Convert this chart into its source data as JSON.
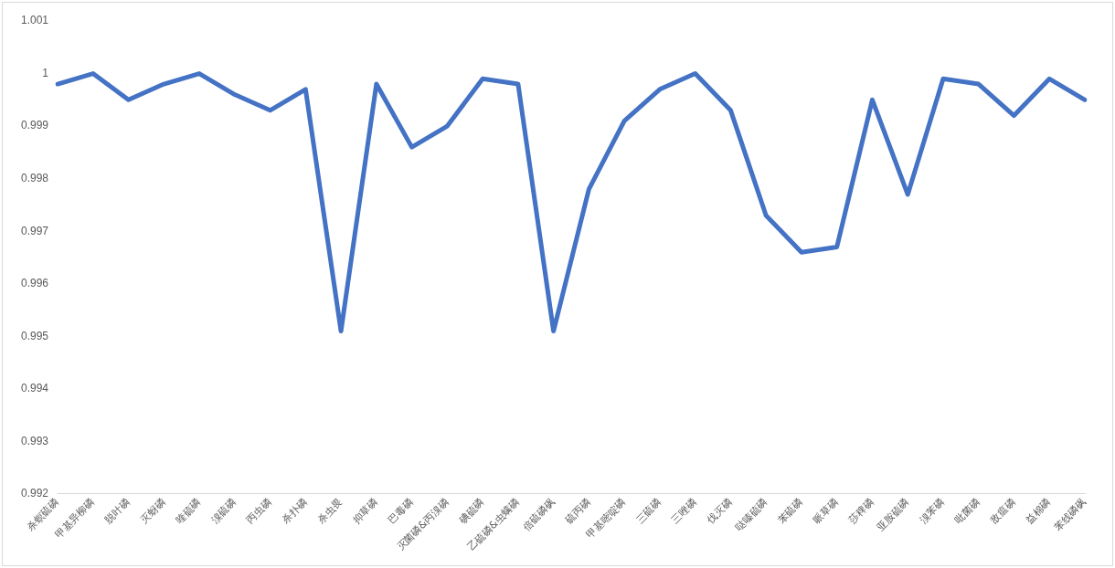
{
  "chart_data": {
    "type": "line",
    "categories": [
      "杀螟硫磷",
      "甲基异柳磷",
      "脱叶磷",
      "灭蚜磷",
      "喹硫磷",
      "溴硫磷",
      "丙虫磷",
      "杀扑磷",
      "杀虫畏",
      "抑草磷",
      "巴毒磷",
      "灭菌磷&丙溴磷",
      "碘硫磷",
      "乙硫磷&虫螨磷",
      "倍硫磷砜",
      "硫丙磷",
      "甲基嘧啶磷",
      "三硫磷",
      "三唑磷",
      "伐灭磷",
      "哒嗪硫磷",
      "苯硫磷",
      "哌草磷",
      "莎稗磷",
      "亚胺硫磷",
      "溴苯磷",
      "吡菌磷",
      "敌瘟磷",
      "益棉磷",
      "苯线磷砜"
    ],
    "series": [
      {
        "color": "#4472c4",
        "values": [
          0.9998,
          1.0,
          0.9995,
          0.9998,
          1.0,
          0.9996,
          0.9993,
          0.9997,
          0.9951,
          0.9998,
          0.9986,
          0.999,
          0.9999,
          0.9998,
          0.9951,
          0.9978,
          0.9991,
          0.9997,
          1.0,
          0.9993,
          0.9973,
          0.9966,
          0.9967,
          0.9995,
          0.9977,
          0.9999,
          0.9998,
          0.9992,
          0.9999,
          0.9995
        ]
      }
    ],
    "ylim": [
      0.992,
      1.001
    ],
    "yticks": [
      0.992,
      0.993,
      0.994,
      0.995,
      0.996,
      0.997,
      0.998,
      0.999,
      1,
      1.001
    ],
    "grid": false,
    "legend": false,
    "marker": "none",
    "line_style": "solid"
  }
}
